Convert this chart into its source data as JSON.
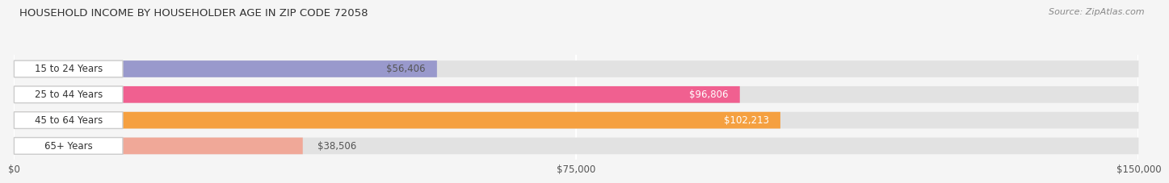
{
  "title": "HOUSEHOLD INCOME BY HOUSEHOLDER AGE IN ZIP CODE 72058",
  "source": "Source: ZipAtlas.com",
  "categories": [
    "15 to 24 Years",
    "25 to 44 Years",
    "45 to 64 Years",
    "65+ Years"
  ],
  "values": [
    56406,
    96806,
    102213,
    38506
  ],
  "labels": [
    "$56,406",
    "$96,806",
    "$102,213",
    "$38,506"
  ],
  "bar_colors": [
    "#9999cc",
    "#f06090",
    "#f5a040",
    "#f0a898"
  ],
  "label_colors": [
    "#555555",
    "#ffffff",
    "#ffffff",
    "#555555"
  ],
  "bg_color": "#f5f5f5",
  "bar_bg_color": "#e2e2e2",
  "xlim": [
    0,
    150000
  ],
  "xticks": [
    0,
    75000,
    150000
  ],
  "xticklabels": [
    "$0",
    "$75,000",
    "$150,000"
  ],
  "figsize": [
    14.06,
    2.33
  ],
  "dpi": 100
}
